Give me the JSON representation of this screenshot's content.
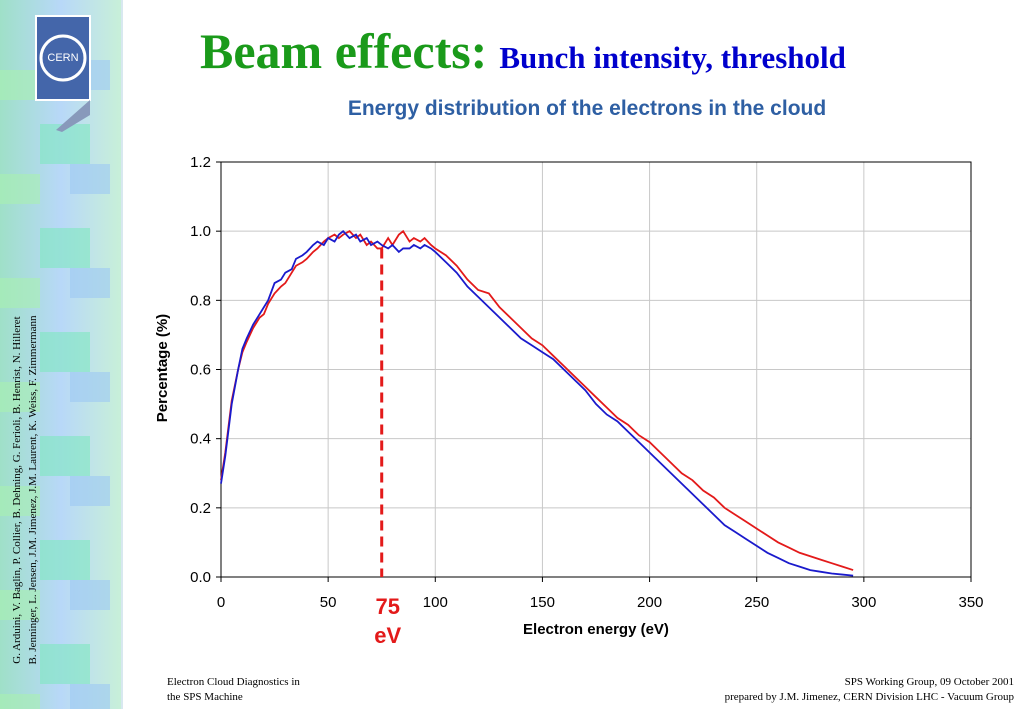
{
  "slide": {
    "logo": "CERN",
    "title": "Beam effects:",
    "title_suffix": "Bunch intensity, threshold",
    "authors": [
      "G. Arduini, V. Baglin, P. Collier, B. Dehning, G. Ferioli, B. Henrist, N. Hilleret",
      "B. Jenninger, L. Jensen, J.M. Jimenez, J.M. Laurent, K. Weiss, F. Zimmermann"
    ],
    "footer_left": [
      "Electron Cloud Diagnostics in",
      "the SPS Machine"
    ],
    "footer_right": [
      "SPS Working Group, 09 October 2001",
      "prepared by J.M. Jimenez, CERN Division LHC - Vacuum Group"
    ]
  },
  "chart_data": {
    "type": "line",
    "title": "Energy distribution of the electrons in the cloud",
    "x_label": "Electron energy (eV)",
    "y_label": "Percentage (%)",
    "xlim": [
      0,
      350
    ],
    "xticks": [
      0,
      50,
      100,
      150,
      200,
      250,
      300,
      350
    ],
    "ylim": [
      0,
      1.2
    ],
    "yticks": [
      {
        "value": 0,
        "label": "0.0"
      },
      {
        "value": 0.2,
        "label": "0.2"
      },
      {
        "value": 0.4,
        "label": "0.4"
      },
      {
        "value": 0.6,
        "label": "0.6"
      },
      {
        "value": 0.8,
        "label": "0.8"
      },
      {
        "value": 1.0,
        "label": "1.0"
      },
      {
        "value": 1.2,
        "label": "1.2"
      }
    ],
    "grid": true,
    "x": [
      0,
      2,
      5,
      8,
      10,
      12,
      15,
      18,
      20,
      22,
      25,
      28,
      30,
      33,
      35,
      38,
      40,
      43,
      45,
      48,
      50,
      53,
      55,
      57,
      60,
      63,
      65,
      68,
      70,
      73,
      75,
      78,
      80,
      83,
      85,
      88,
      90,
      93,
      95,
      98,
      100,
      105,
      110,
      115,
      120,
      125,
      130,
      135,
      140,
      145,
      150,
      155,
      160,
      165,
      170,
      175,
      180,
      185,
      190,
      195,
      200,
      205,
      210,
      215,
      220,
      225,
      230,
      235,
      240,
      245,
      250,
      255,
      260,
      265,
      270,
      275,
      280,
      285,
      290,
      295
    ],
    "series": [
      {
        "color": "#e31a1a",
        "values": [
          0.28,
          0.36,
          0.51,
          0.6,
          0.65,
          0.68,
          0.72,
          0.75,
          0.76,
          0.79,
          0.82,
          0.84,
          0.85,
          0.88,
          0.9,
          0.91,
          0.92,
          0.94,
          0.95,
          0.97,
          0.98,
          0.99,
          0.98,
          0.99,
          1.0,
          0.98,
          0.99,
          0.96,
          0.97,
          0.95,
          0.95,
          0.98,
          0.96,
          0.99,
          1.0,
          0.97,
          0.98,
          0.97,
          0.98,
          0.96,
          0.95,
          0.93,
          0.9,
          0.86,
          0.83,
          0.82,
          0.78,
          0.75,
          0.72,
          0.69,
          0.67,
          0.64,
          0.61,
          0.58,
          0.55,
          0.52,
          0.49,
          0.46,
          0.44,
          0.41,
          0.39,
          0.36,
          0.33,
          0.3,
          0.28,
          0.25,
          0.23,
          0.2,
          0.18,
          0.16,
          0.14,
          0.12,
          0.1,
          0.085,
          0.07,
          0.06,
          0.05,
          0.04,
          0.03,
          0.02
        ]
      },
      {
        "color": "#1a1acc",
        "values": [
          0.27,
          0.35,
          0.5,
          0.6,
          0.66,
          0.69,
          0.73,
          0.76,
          0.78,
          0.8,
          0.85,
          0.86,
          0.88,
          0.89,
          0.92,
          0.93,
          0.94,
          0.96,
          0.97,
          0.96,
          0.98,
          0.97,
          0.99,
          1.0,
          0.98,
          0.99,
          0.97,
          0.98,
          0.96,
          0.97,
          0.96,
          0.95,
          0.96,
          0.94,
          0.95,
          0.95,
          0.96,
          0.95,
          0.96,
          0.95,
          0.94,
          0.91,
          0.88,
          0.84,
          0.81,
          0.78,
          0.75,
          0.72,
          0.69,
          0.67,
          0.65,
          0.63,
          0.6,
          0.57,
          0.54,
          0.5,
          0.47,
          0.45,
          0.42,
          0.39,
          0.36,
          0.33,
          0.3,
          0.27,
          0.24,
          0.21,
          0.18,
          0.15,
          0.13,
          0.11,
          0.09,
          0.07,
          0.055,
          0.04,
          0.03,
          0.02,
          0.015,
          0.01,
          0.007,
          0.004
        ]
      }
    ],
    "annotation": {
      "x": 75,
      "label": [
        "75",
        "eV"
      ],
      "color": "#e31a1a"
    }
  }
}
